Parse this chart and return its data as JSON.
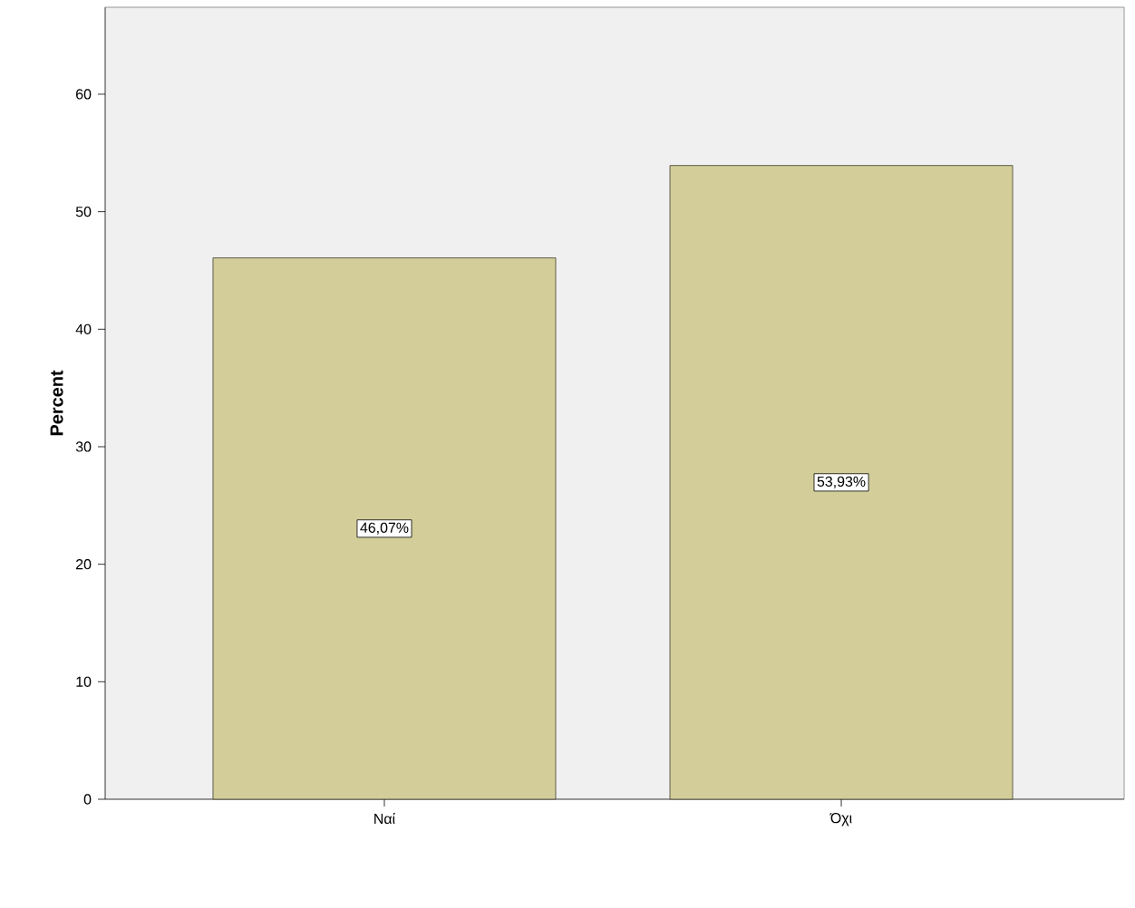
{
  "chart_data": {
    "type": "bar",
    "ylabel": "Percent",
    "categories": [
      "Ναί",
      "Όχι"
    ],
    "values": [
      46.07,
      53.93
    ],
    "value_labels": [
      "46,07%",
      "53,93%"
    ],
    "color": "#d3ce99",
    "ylim": [
      0,
      67.4
    ],
    "yticks": [
      0,
      10,
      20,
      30,
      40,
      50,
      60
    ]
  }
}
